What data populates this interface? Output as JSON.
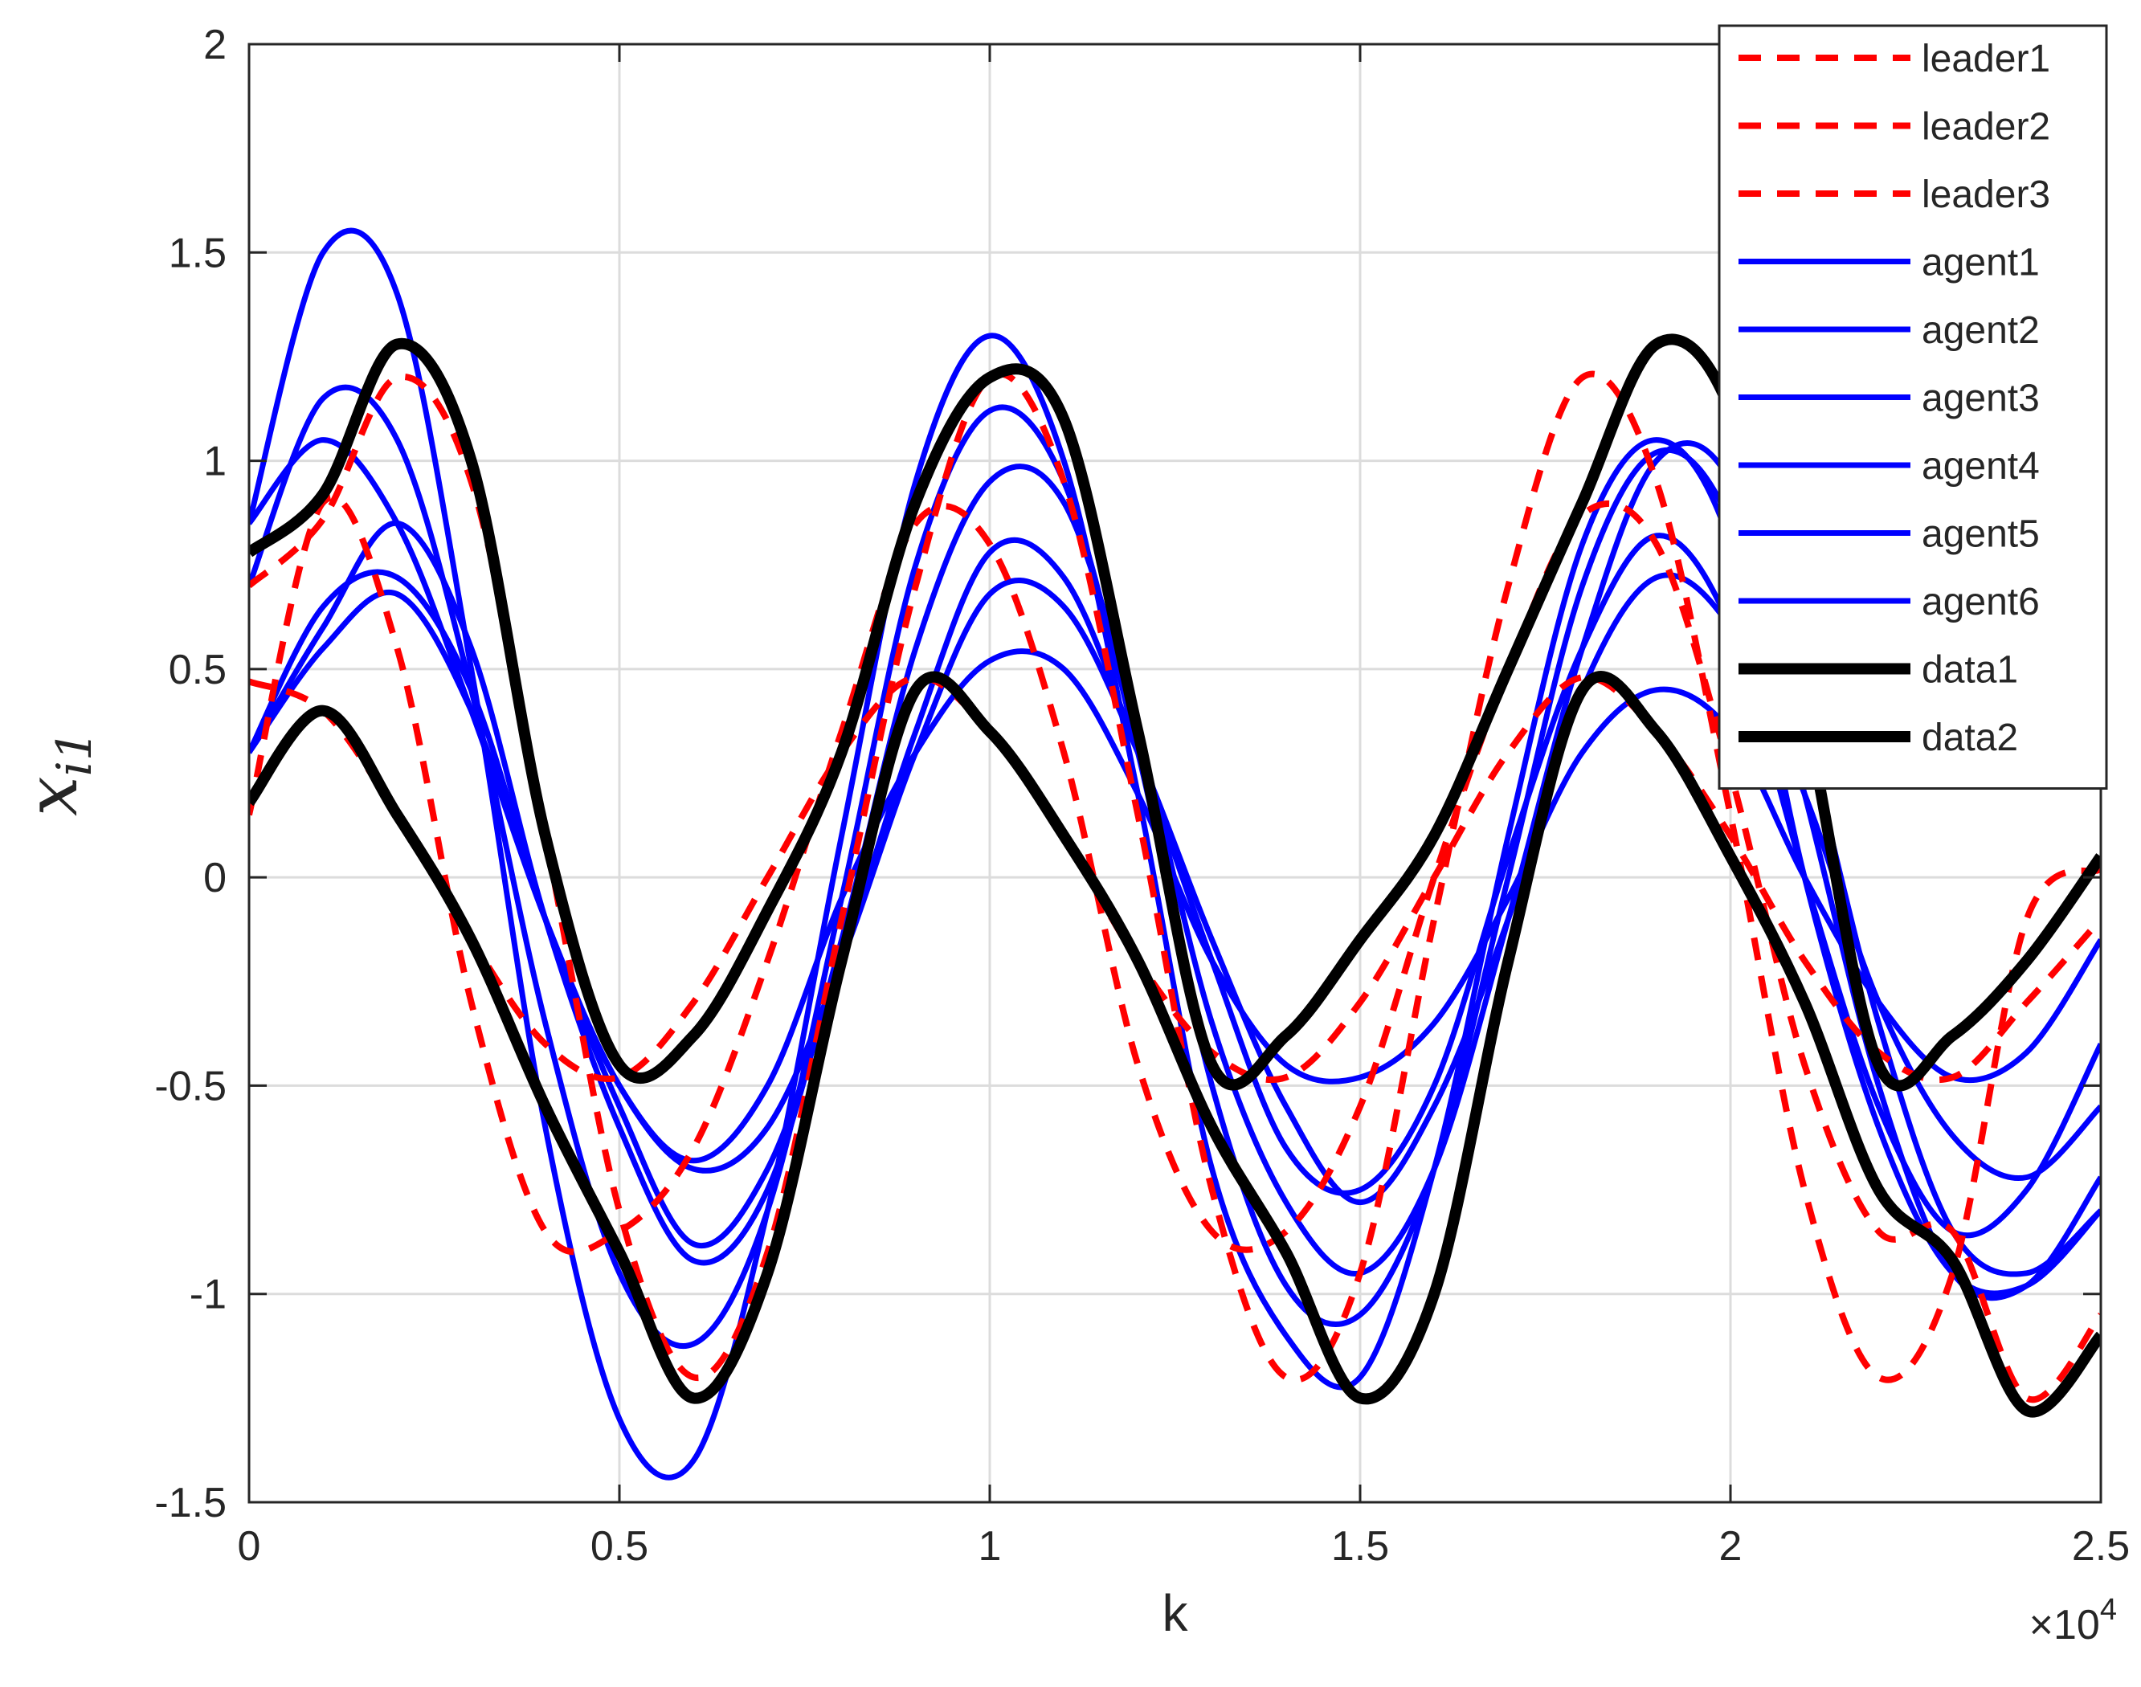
{
  "chart_data": {
    "type": "line",
    "title": "",
    "xlabel": "k",
    "ylabel": "x",
    "ylabel_subscript": "i1",
    "x_exponent_base": "×10",
    "x_exponent_power": "4",
    "xlim": [
      0,
      25000
    ],
    "ylim": [
      -1.5,
      2
    ],
    "xticks": [
      0,
      5000,
      10000,
      15000,
      20000,
      25000
    ],
    "xtick_labels": [
      "0",
      "0.5",
      "1",
      "1.5",
      "2",
      "2.5"
    ],
    "yticks": [
      -1.5,
      -1,
      -0.5,
      0,
      0.5,
      1,
      1.5,
      2
    ],
    "ytick_labels": [
      "-1.5",
      "-1",
      "-0.5",
      "0",
      "0.5",
      "1",
      "1.5",
      "2"
    ],
    "grid": true,
    "legend_position": "top-right",
    "colors": {
      "leader": "#ff0000",
      "agent": "#0000ff",
      "data": "#000000",
      "grid": "#dcdcdc",
      "axis": "#262626"
    },
    "series": [
      {
        "name": "leader1",
        "style": "dashed",
        "color": "#ff0000",
        "x": [
          0,
          1000,
          2000,
          3000,
          4000,
          5000,
          6000,
          7000,
          8000,
          9000,
          10000,
          11000,
          12000,
          13000,
          14000,
          15000,
          16000,
          17000,
          18000,
          19000,
          20000,
          21000,
          22000,
          23000,
          24000,
          25000
        ],
        "y": [
          0.7,
          0.86,
          1.2,
          0.95,
          0.1,
          -0.8,
          -1.2,
          -0.9,
          -0.1,
          0.7,
          1.2,
          0.95,
          0.15,
          -0.75,
          -1.2,
          -0.95,
          -0.1,
          0.7,
          1.2,
          0.95,
          0.15,
          -0.75,
          -1.2,
          -0.95,
          -0.1,
          0.02
        ]
      },
      {
        "name": "leader2",
        "style": "dashed",
        "color": "#ff0000",
        "x": [
          0,
          1000,
          2000,
          3000,
          4000,
          5000,
          6000,
          7000,
          8000,
          9000,
          10000,
          11000,
          12000,
          13000,
          14000,
          15000,
          16000,
          17000,
          18000,
          19000,
          20000,
          21000,
          22000,
          23000,
          24000,
          25000
        ],
        "y": [
          0.47,
          0.4,
          0.15,
          -0.15,
          -0.4,
          -0.48,
          -0.3,
          0.0,
          0.3,
          0.48,
          0.35,
          0.1,
          -0.2,
          -0.42,
          -0.48,
          -0.3,
          0.0,
          0.3,
          0.48,
          0.35,
          0.1,
          -0.2,
          -0.42,
          -0.48,
          -0.3,
          -0.1
        ]
      },
      {
        "name": "leader3",
        "style": "dashed",
        "color": "#ff0000",
        "x": [
          0,
          1000,
          2000,
          3000,
          4000,
          5000,
          6000,
          7000,
          8000,
          9000,
          10000,
          11000,
          12000,
          13000,
          14000,
          15000,
          16000,
          17000,
          18000,
          19000,
          20000,
          21000,
          22000,
          23000,
          24000,
          25000
        ],
        "y": [
          0.15,
          0.9,
          0.55,
          -0.3,
          -0.85,
          -0.85,
          -0.65,
          -0.2,
          0.35,
          0.85,
          0.8,
          0.3,
          -0.45,
          -0.85,
          -0.85,
          -0.55,
          0.0,
          0.5,
          0.87,
          0.8,
          0.25,
          -0.45,
          -0.85,
          -0.85,
          -1.25,
          -1.05
        ]
      },
      {
        "name": "agent1",
        "style": "solid",
        "color": "#0000ff",
        "x": [
          0,
          1000,
          2000,
          3000,
          4000,
          5000,
          6000,
          7000,
          8000,
          9000,
          10000,
          11000,
          12000,
          13000,
          14000,
          15000,
          16000,
          17000,
          18000,
          19000,
          20000,
          21000,
          22000,
          23000,
          24000,
          25000
        ],
        "y": [
          0.85,
          1.5,
          1.4,
          0.5,
          -0.6,
          -1.3,
          -1.4,
          -0.8,
          0.1,
          0.95,
          1.3,
          1.0,
          0.2,
          -0.7,
          -1.1,
          -1.2,
          -0.7,
          0.1,
          0.8,
          1.05,
          0.8,
          0.0,
          -0.6,
          -0.95,
          -0.98,
          -0.8
        ]
      },
      {
        "name": "agent2",
        "style": "solid",
        "color": "#0000ff",
        "x": [
          0,
          1000,
          2000,
          3000,
          4000,
          5000,
          6000,
          7000,
          8000,
          9000,
          10000,
          11000,
          12000,
          13000,
          14000,
          15000,
          16000,
          17000,
          18000,
          19000,
          20000,
          21000,
          22000,
          23000,
          24000,
          25000
        ],
        "y": [
          0.7,
          1.15,
          1.05,
          0.45,
          -0.35,
          -0.95,
          -1.12,
          -0.8,
          -0.05,
          0.75,
          1.12,
          0.95,
          0.3,
          -0.5,
          -0.98,
          -1.05,
          -0.7,
          0.0,
          0.7,
          1.02,
          0.85,
          0.2,
          -0.5,
          -0.95,
          -0.98,
          -0.72
        ]
      },
      {
        "name": "agent3",
        "style": "solid",
        "color": "#0000ff",
        "x": [
          0,
          1000,
          2000,
          3000,
          4000,
          5000,
          6000,
          7000,
          8000,
          9000,
          10000,
          11000,
          12000,
          13000,
          14000,
          15000,
          16000,
          17000,
          18000,
          19000,
          20000,
          21000,
          22000,
          23000,
          24000,
          25000
        ],
        "y": [
          0.3,
          0.6,
          0.85,
          0.55,
          -0.1,
          -0.6,
          -0.92,
          -0.75,
          -0.15,
          0.55,
          0.95,
          0.9,
          0.35,
          -0.35,
          -0.78,
          -0.95,
          -0.7,
          -0.1,
          0.55,
          1.0,
          0.95,
          0.35,
          -0.35,
          -0.85,
          -0.95,
          -0.8
        ]
      },
      {
        "name": "agent4",
        "style": "solid",
        "color": "#0000ff",
        "x": [
          0,
          1000,
          2000,
          3000,
          4000,
          5000,
          6000,
          7000,
          8000,
          9000,
          10000,
          11000,
          12000,
          13000,
          14000,
          15000,
          16000,
          17000,
          18000,
          19000,
          20000,
          21000,
          22000,
          23000,
          24000,
          25000
        ],
        "y": [
          0.3,
          0.65,
          0.72,
          0.45,
          -0.1,
          -0.55,
          -0.88,
          -0.7,
          -0.2,
          0.35,
          0.78,
          0.72,
          0.3,
          -0.2,
          -0.65,
          -0.75,
          -0.5,
          0.05,
          0.55,
          0.82,
          0.6,
          0.0,
          -0.55,
          -0.85,
          -0.75,
          -0.4
        ]
      },
      {
        "name": "agent5",
        "style": "solid",
        "color": "#0000ff",
        "x": [
          0,
          1000,
          2000,
          3000,
          4000,
          5000,
          6000,
          7000,
          8000,
          9000,
          10000,
          11000,
          12000,
          13000,
          14000,
          15000,
          16000,
          17000,
          18000,
          19000,
          20000,
          21000,
          22000,
          23000,
          24000,
          25000
        ],
        "y": [
          0.3,
          0.55,
          0.68,
          0.4,
          -0.1,
          -0.5,
          -0.7,
          -0.6,
          -0.2,
          0.3,
          0.68,
          0.65,
          0.3,
          -0.15,
          -0.55,
          -0.78,
          -0.55,
          -0.1,
          0.45,
          0.72,
          0.6,
          0.2,
          -0.3,
          -0.62,
          -0.72,
          -0.55
        ]
      },
      {
        "name": "agent6",
        "style": "solid",
        "color": "#0000ff",
        "x": [
          0,
          1000,
          2000,
          3000,
          4000,
          5000,
          6000,
          7000,
          8000,
          9000,
          10000,
          11000,
          12000,
          13000,
          14000,
          15000,
          16000,
          17000,
          18000,
          19000,
          20000,
          21000,
          22000,
          23000,
          24000,
          25000
        ],
        "y": [
          0.85,
          1.05,
          0.85,
          0.4,
          -0.1,
          -0.5,
          -0.68,
          -0.5,
          -0.05,
          0.3,
          0.52,
          0.5,
          0.2,
          -0.2,
          -0.45,
          -0.48,
          -0.35,
          -0.05,
          0.3,
          0.45,
          0.35,
          0.0,
          -0.3,
          -0.48,
          -0.42,
          -0.15
        ]
      },
      {
        "name": "data1",
        "style": "solid-thick",
        "color": "#000000",
        "x": [
          0,
          1000,
          2000,
          3000,
          4000,
          5000,
          6000,
          7000,
          8000,
          9000,
          10000,
          11000,
          12000,
          13000,
          14000,
          15000,
          16000,
          17000,
          18000,
          19000,
          20000,
          21000,
          22000,
          23000,
          24000,
          25000
        ],
        "y": [
          0.78,
          0.92,
          1.28,
          1.0,
          0.1,
          -0.45,
          -0.38,
          -0.08,
          0.3,
          0.9,
          1.2,
          1.1,
          0.35,
          -0.45,
          -0.38,
          -0.15,
          0.1,
          0.5,
          0.9,
          1.28,
          1.12,
          0.4,
          -0.45,
          -0.38,
          -0.2,
          0.05
        ]
      },
      {
        "name": "data2",
        "style": "solid-thick",
        "color": "#000000",
        "x": [
          0,
          1000,
          2000,
          3000,
          4000,
          5000,
          6000,
          7000,
          8000,
          9000,
          10000,
          11000,
          12000,
          13000,
          14000,
          15000,
          16000,
          17000,
          18000,
          19000,
          20000,
          21000,
          22000,
          23000,
          24000,
          25000
        ],
        "y": [
          0.18,
          0.4,
          0.15,
          -0.15,
          -0.55,
          -0.9,
          -1.25,
          -0.95,
          -0.2,
          0.45,
          0.35,
          0.1,
          -0.2,
          -0.6,
          -0.9,
          -1.25,
          -1.0,
          -0.2,
          0.45,
          0.35,
          0.05,
          -0.3,
          -0.75,
          -0.92,
          -1.28,
          -1.1
        ]
      }
    ]
  }
}
